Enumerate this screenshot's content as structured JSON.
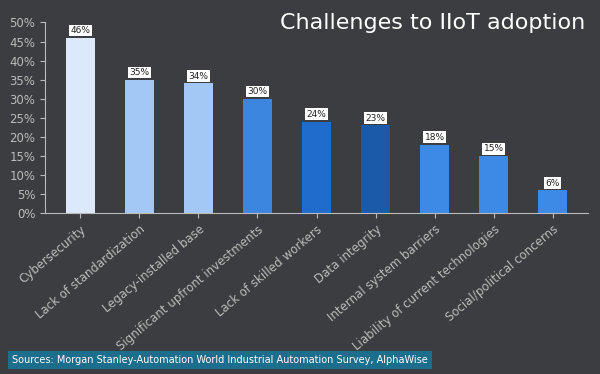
{
  "chart_data": {
    "type": "bar",
    "title": "Challenges to IIoT adoption",
    "categories": [
      "Cybersecurity",
      "Lack of standardization",
      "Legacy-installed base",
      "Significant upfront investments",
      "Lack of skilled workers",
      "Data integrity",
      "Internal system barriers",
      "Liability of current technologies",
      "Social/political concerns"
    ],
    "values": [
      46,
      35,
      34,
      30,
      24,
      23,
      18,
      15,
      6
    ],
    "value_labels": [
      "46%",
      "35%",
      "34%",
      "30%",
      "24%",
      "23%",
      "18%",
      "15%",
      "6%"
    ],
    "data_labels": true,
    "colors": [
      "#dbe9fb",
      "#a4c8f5",
      "#a4c8f5",
      "#3d86e0",
      "#1f6ccc",
      "#1a5aa8",
      "#3d8ae6",
      "#3d8ae6",
      "#3d8ae6"
    ],
    "ylim": [
      0,
      50
    ],
    "yticks": [
      {
        "value": 0,
        "label": "0%"
      },
      {
        "value": 5,
        "label": "5%"
      },
      {
        "value": 10,
        "label": "10%"
      },
      {
        "value": 15,
        "label": "15%"
      },
      {
        "value": 20,
        "label": "20%"
      },
      {
        "value": 25,
        "label": "25%"
      },
      {
        "value": 30,
        "label": "30%"
      },
      {
        "value": 35,
        "label": "35%"
      },
      {
        "value": 40,
        "label": "40%"
      },
      {
        "value": 45,
        "label": "45%"
      },
      {
        "value": 50,
        "label": "50%"
      }
    ],
    "grid": false,
    "annotations": [
      "Sources: Morgan Stanley-Automation World Industrial Automation Survey, AlphaWise"
    ]
  }
}
